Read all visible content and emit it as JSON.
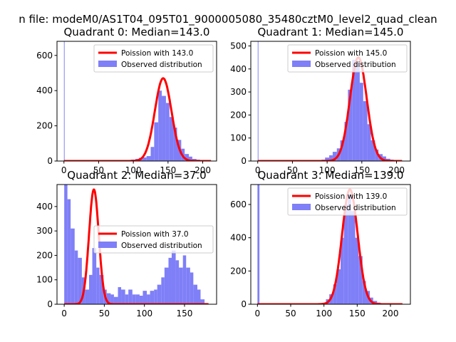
{
  "figure": {
    "suptitle": "n file: modeM0/AS1T04_095T01_9000005080_35480cztM0_level2_quad_clean"
  },
  "colors": {
    "hist": "#7f7ff7",
    "poisson": "#ff0000",
    "axes": "#000000",
    "background": "#ffffff"
  },
  "chart_data": [
    {
      "type": "bar",
      "title": "Quadrant 0: Median=143.0",
      "xlim": [
        -10,
        220
      ],
      "ylim": [
        0,
        680
      ],
      "xticks": [
        0,
        50,
        100,
        150,
        200
      ],
      "yticks": [
        0,
        200,
        400,
        600
      ],
      "legend": {
        "placement": "top-right",
        "line_label": "Poission with 143.0",
        "hist_label": "Observed distribution"
      },
      "poisson_mean": 143.0,
      "poisson_peak": 470,
      "poisson_range": [
        0,
        212
      ],
      "bin_width": 5.5,
      "bins": [
        [
          0,
          1,
          680
        ],
        [
          2,
          7,
          3
        ],
        [
          9,
          14,
          2
        ],
        [
          15,
          20,
          2
        ],
        [
          20,
          26,
          3
        ],
        [
          26,
          31,
          2
        ],
        [
          31,
          37,
          2
        ],
        [
          37,
          42,
          3
        ],
        [
          42,
          48,
          2
        ],
        [
          48,
          53,
          2
        ],
        [
          53,
          59,
          3
        ],
        [
          59,
          64,
          2
        ],
        [
          64,
          70,
          3
        ],
        [
          70,
          75,
          3
        ],
        [
          75,
          81,
          3
        ],
        [
          81,
          86,
          3
        ],
        [
          86,
          92,
          4
        ],
        [
          92,
          97,
          5
        ],
        [
          97,
          103,
          8
        ],
        [
          103,
          108,
          12
        ],
        [
          108,
          114,
          18
        ],
        [
          114,
          119,
          20
        ],
        [
          119,
          125,
          28
        ],
        [
          125,
          130,
          80
        ],
        [
          130,
          136,
          220
        ],
        [
          136,
          141,
          400
        ],
        [
          141,
          147,
          370
        ],
        [
          147,
          152,
          330
        ],
        [
          152,
          158,
          250
        ],
        [
          158,
          163,
          190
        ],
        [
          163,
          169,
          120
        ],
        [
          169,
          174,
          70
        ],
        [
          174,
          180,
          40
        ],
        [
          180,
          185,
          25
        ],
        [
          185,
          191,
          12
        ],
        [
          191,
          196,
          8
        ],
        [
          196,
          202,
          4
        ],
        [
          202,
          207,
          2
        ]
      ]
    },
    {
      "type": "bar",
      "title": "Quadrant 1: Median=145.0",
      "xlim": [
        -10,
        220
      ],
      "ylim": [
        0,
        520
      ],
      "xticks": [
        0,
        50,
        100,
        150,
        200
      ],
      "yticks": [
        0,
        100,
        200,
        300,
        400,
        500
      ],
      "legend": {
        "placement": "top-right",
        "line_label": "Poission with 145.0",
        "hist_label": "Observed distribution"
      },
      "poisson_mean": 145.0,
      "poisson_peak": 450,
      "poisson_range": [
        0,
        208
      ],
      "bin_width": 5.5,
      "bins": [
        [
          0,
          1,
          520
        ],
        [
          2,
          7,
          3
        ],
        [
          9,
          14,
          2
        ],
        [
          15,
          20,
          2
        ],
        [
          20,
          26,
          2
        ],
        [
          26,
          31,
          2
        ],
        [
          31,
          37,
          3
        ],
        [
          37,
          42,
          2
        ],
        [
          42,
          48,
          2
        ],
        [
          48,
          53,
          2
        ],
        [
          53,
          59,
          3
        ],
        [
          59,
          64,
          2
        ],
        [
          64,
          70,
          2
        ],
        [
          70,
          75,
          3
        ],
        [
          75,
          81,
          3
        ],
        [
          81,
          86,
          4
        ],
        [
          86,
          92,
          4
        ],
        [
          92,
          97,
          6
        ],
        [
          97,
          103,
          15
        ],
        [
          103,
          108,
          25
        ],
        [
          108,
          114,
          40
        ],
        [
          114,
          119,
          55
        ],
        [
          119,
          125,
          90
        ],
        [
          125,
          130,
          170
        ],
        [
          130,
          136,
          310
        ],
        [
          136,
          141,
          440
        ],
        [
          141,
          147,
          430
        ],
        [
          147,
          152,
          340
        ],
        [
          152,
          158,
          260
        ],
        [
          158,
          163,
          160
        ],
        [
          163,
          169,
          90
        ],
        [
          169,
          174,
          50
        ],
        [
          174,
          180,
          30
        ],
        [
          180,
          185,
          20
        ],
        [
          185,
          191,
          10
        ],
        [
          191,
          196,
          6
        ],
        [
          196,
          202,
          3
        ]
      ]
    },
    {
      "type": "bar",
      "title": "Quadrant 2: Median=37.0",
      "xlim": [
        -9,
        190
      ],
      "ylim": [
        0,
        490
      ],
      "xticks": [
        0,
        50,
        100,
        150
      ],
      "yticks": [
        0,
        100,
        200,
        300,
        400
      ],
      "legend": {
        "placement": "center-right",
        "line_label": "Poission with 37.0",
        "hist_label": "Observed distribution"
      },
      "poisson_mean": 37.0,
      "poisson_peak": 470,
      "poisson_range": [
        0,
        180
      ],
      "bin_width": 4.5,
      "bins": [
        [
          0,
          4,
          490
        ],
        [
          4,
          8,
          430
        ],
        [
          8,
          13,
          310
        ],
        [
          13,
          17,
          220
        ],
        [
          17,
          22,
          190
        ],
        [
          22,
          26,
          110
        ],
        [
          26,
          31,
          60
        ],
        [
          31,
          35,
          120
        ],
        [
          35,
          40,
          230
        ],
        [
          40,
          44,
          150
        ],
        [
          44,
          49,
          120
        ],
        [
          49,
          53,
          60
        ],
        [
          53,
          58,
          45
        ],
        [
          58,
          62,
          40
        ],
        [
          62,
          67,
          30
        ],
        [
          67,
          71,
          70
        ],
        [
          71,
          76,
          60
        ],
        [
          76,
          80,
          40
        ],
        [
          80,
          85,
          60
        ],
        [
          85,
          89,
          40
        ],
        [
          89,
          94,
          40
        ],
        [
          94,
          98,
          35
        ],
        [
          98,
          103,
          55
        ],
        [
          103,
          107,
          40
        ],
        [
          107,
          112,
          55
        ],
        [
          112,
          116,
          60
        ],
        [
          116,
          121,
          80
        ],
        [
          121,
          125,
          110
        ],
        [
          125,
          130,
          150
        ],
        [
          130,
          134,
          190
        ],
        [
          134,
          139,
          220
        ],
        [
          139,
          143,
          180
        ],
        [
          143,
          148,
          150
        ],
        [
          148,
          152,
          200
        ],
        [
          152,
          157,
          150
        ],
        [
          157,
          161,
          130
        ],
        [
          161,
          166,
          80
        ],
        [
          166,
          170,
          60
        ],
        [
          170,
          175,
          20
        ],
        [
          175,
          179,
          5
        ]
      ]
    },
    {
      "type": "bar",
      "title": "Quadrant 3: Median=139.0",
      "xlim": [
        -10,
        230
      ],
      "ylim": [
        0,
        720
      ],
      "xticks": [
        0,
        50,
        100,
        150,
        200
      ],
      "yticks": [
        0,
        200,
        400,
        600
      ],
      "legend": {
        "placement": "top-right",
        "line_label": "Poission with 139.0",
        "hist_label": "Observed distribution"
      },
      "poisson_mean": 139.0,
      "poisson_peak": 690,
      "poisson_range": [
        0,
        218
      ],
      "bin_width": 5.5,
      "bins": [
        [
          0,
          3,
          720
        ],
        [
          3,
          8,
          3
        ],
        [
          86,
          92,
          3
        ],
        [
          92,
          97,
          5
        ],
        [
          97,
          103,
          8
        ],
        [
          103,
          108,
          30
        ],
        [
          108,
          114,
          60
        ],
        [
          114,
          119,
          120
        ],
        [
          119,
          125,
          210
        ],
        [
          125,
          130,
          400
        ],
        [
          130,
          136,
          600
        ],
        [
          136,
          141,
          660
        ],
        [
          141,
          147,
          560
        ],
        [
          147,
          152,
          400
        ],
        [
          152,
          158,
          290
        ],
        [
          158,
          163,
          140
        ],
        [
          163,
          169,
          80
        ],
        [
          169,
          174,
          40
        ],
        [
          174,
          180,
          20
        ],
        [
          180,
          185,
          10
        ],
        [
          185,
          191,
          5
        ],
        [
          191,
          196,
          3
        ]
      ]
    }
  ]
}
